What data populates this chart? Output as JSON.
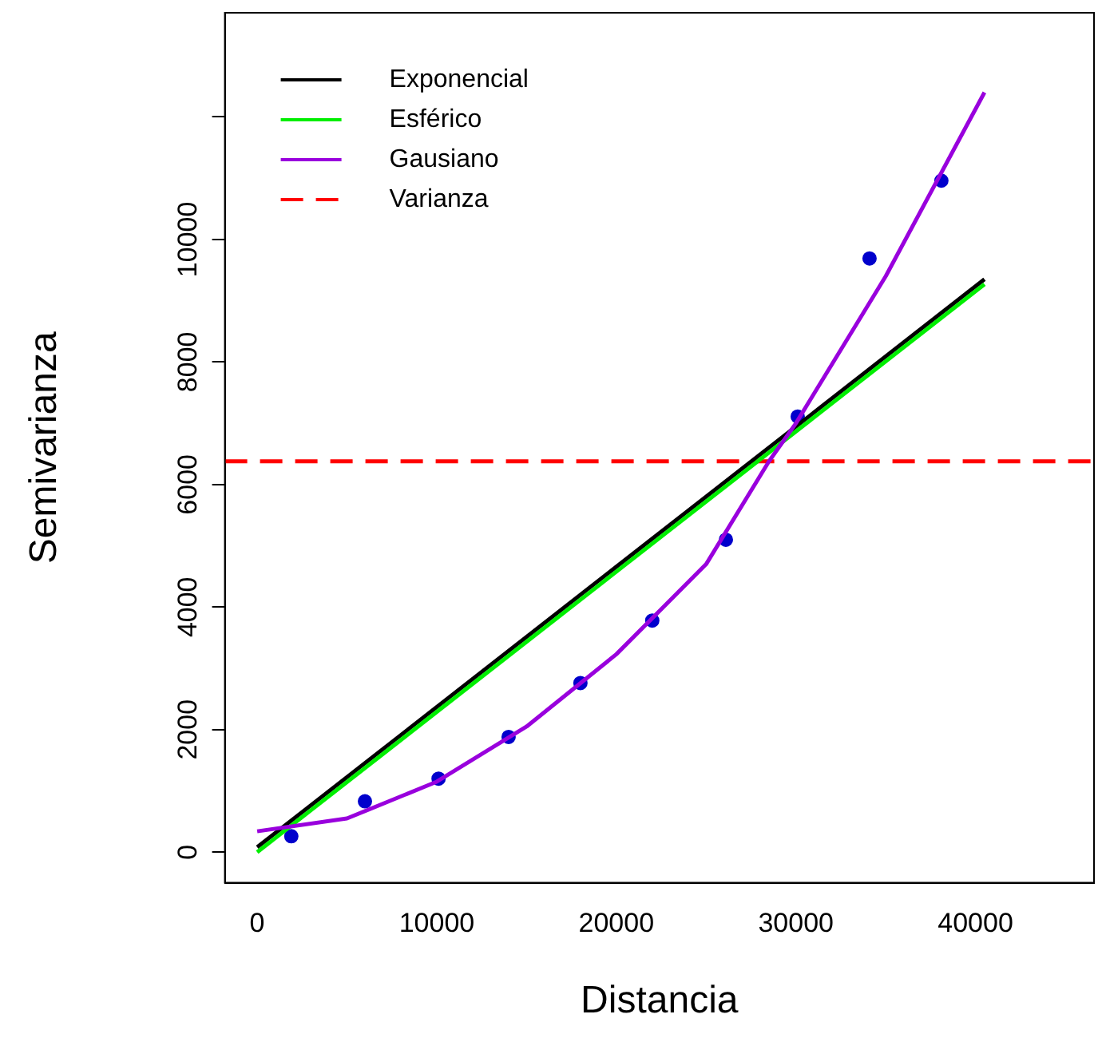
{
  "chart_data": {
    "type": "scatter",
    "xlabel": "Distancia",
    "ylabel": "Semivarianza",
    "xlim": [
      -1800,
      46600
    ],
    "ylim": [
      -500,
      13700
    ],
    "xticks": [
      0,
      10000,
      20000,
      30000,
      40000
    ],
    "yticks": [
      0,
      2000,
      4000,
      6000,
      8000,
      10000,
      {
        "value": 12000,
        "label": null
      }
    ],
    "grid": false,
    "legend": "top left",
    "series": [
      {
        "type": "scatter",
        "color": "#0000cc",
        "marker": "circle",
        "x": [
          1900,
          6000,
          10100,
          14000,
          18000,
          22000,
          26100,
          30100,
          34100,
          38100
        ],
        "values": [
          260,
          830,
          1200,
          1880,
          2760,
          3780,
          5100,
          7110,
          9690,
          10960
        ]
      },
      {
        "type": "line",
        "name": "Exponencial",
        "color": "#000000",
        "marker": "none",
        "x": [
          0,
          40500
        ],
        "values": [
          80,
          9350
        ]
      },
      {
        "type": "line",
        "name": "Esférico",
        "color": "#00ee00",
        "marker": "none",
        "x": [
          0,
          40500
        ],
        "values": [
          0,
          9270
        ]
      },
      {
        "type": "line",
        "name": "Gausiano",
        "color": "#9900dd",
        "marker": "none",
        "x": [
          0,
          5000,
          10000,
          15000,
          20000,
          25000,
          28500,
          30000,
          35000,
          40500
        ],
        "values": [
          340,
          550,
          1150,
          2050,
          3230,
          4700,
          6380,
          7000,
          9400,
          12400
        ]
      }
    ],
    "ref_lines": [
      {
        "axis": "y",
        "value": 6380,
        "label": "Varianza",
        "color": "#ff0000",
        "line_style": "dashed"
      }
    ]
  }
}
